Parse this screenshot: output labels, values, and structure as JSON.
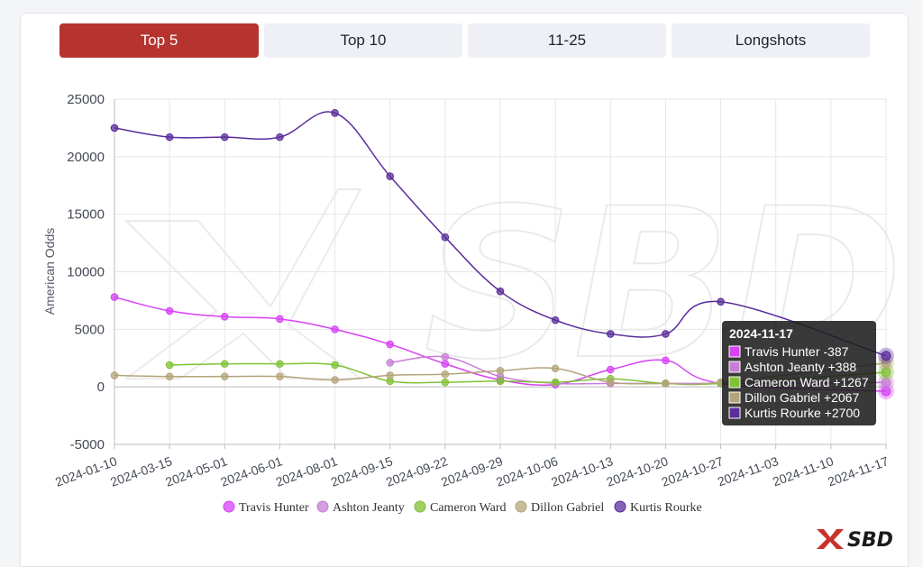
{
  "tabs": [
    {
      "label": "Top 5",
      "active": true
    },
    {
      "label": "Top 10",
      "active": false
    },
    {
      "label": "11-25",
      "active": false
    },
    {
      "label": "Longshots",
      "active": false
    }
  ],
  "logo": {
    "text": "SBD",
    "mark_color": "#c8322c"
  },
  "watermark": "SBD",
  "chart_data": {
    "type": "line",
    "title": "",
    "xlabel": "",
    "ylabel": "American Odds",
    "ylim": [
      -5000,
      25000
    ],
    "yticks": [
      -5000,
      0,
      5000,
      10000,
      15000,
      20000,
      25000
    ],
    "grid": true,
    "legend_position": "bottom-center",
    "categories": [
      "2024-01-10",
      "2024-03-15",
      "2024-05-01",
      "2024-06-01",
      "2024-08-01",
      "2024-09-15",
      "2024-09-22",
      "2024-09-29",
      "2024-10-06",
      "2024-10-13",
      "2024-10-20",
      "2024-10-27",
      "2024-11-03",
      "2024-11-10",
      "2024-11-17"
    ],
    "series": [
      {
        "name": "Travis Hunter",
        "color": "#d742f5",
        "values": [
          7800,
          6600,
          6100,
          5900,
          5000,
          3700,
          2000,
          600,
          200,
          1500,
          2300,
          300,
          null,
          null,
          -387
        ]
      },
      {
        "name": "Ashton Jeanty",
        "color": "#c77dd6",
        "values": [
          null,
          null,
          null,
          null,
          null,
          2100,
          2600,
          900,
          300,
          300,
          300,
          300,
          null,
          null,
          388
        ]
      },
      {
        "name": "Cameron Ward",
        "color": "#7fc234",
        "values": [
          null,
          1900,
          2000,
          2000,
          1900,
          500,
          400,
          500,
          400,
          700,
          300,
          300,
          null,
          null,
          1267
        ]
      },
      {
        "name": "Dillon Gabriel",
        "color": "#b3a47a",
        "values": [
          1000,
          900,
          900,
          900,
          600,
          1000,
          1100,
          1400,
          1600,
          400,
          300,
          400,
          null,
          null,
          2067
        ]
      },
      {
        "name": "Kurtis Rourke",
        "color": "#5a2d9c",
        "values": [
          22500,
          21700,
          21700,
          21700,
          23800,
          18300,
          13000,
          8300,
          5800,
          4600,
          4600,
          7400,
          null,
          null,
          2700
        ]
      }
    ],
    "tooltip": {
      "title": "2024-11-17",
      "lines": [
        "Travis Hunter -387",
        "Ashton Jeanty +388",
        "Cameron Ward +1267",
        "Dillon Gabriel +2067",
        "Kurtis Rourke +2700"
      ]
    }
  }
}
